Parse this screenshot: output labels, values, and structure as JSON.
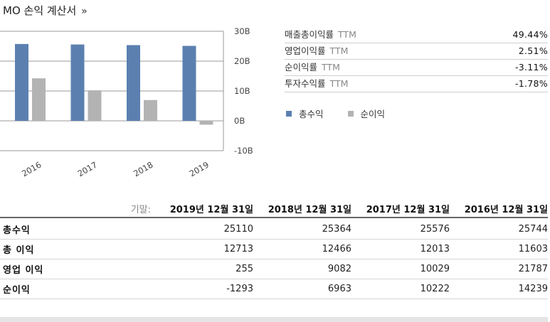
{
  "title": "MO 손익 계산서",
  "title_more": "»",
  "chart_data": {
    "type": "bar",
    "categories": [
      "2016",
      "2017",
      "2018",
      "2019"
    ],
    "series": [
      {
        "name": "총수익",
        "color": "#5b80b0",
        "values": [
          25.744,
          25.576,
          25.364,
          25.11
        ]
      },
      {
        "name": "순이익",
        "color": "#b3b3b3",
        "values": [
          14.239,
          10.222,
          6.963,
          -1.293
        ]
      }
    ],
    "ylim": [
      -10,
      30
    ],
    "yticks": [
      "30B",
      "20B",
      "10B",
      "0B",
      "-10B"
    ],
    "grid": "horizontal",
    "legend": "below metrics"
  },
  "metrics": [
    {
      "label": "매출총이익률",
      "ttm": "TTM",
      "value": "49.44%"
    },
    {
      "label": "영업이익률",
      "ttm": "TTM",
      "value": "2.51%"
    },
    {
      "label": "순이익률",
      "ttm": "TTM",
      "value": "-3.11%"
    },
    {
      "label": "투자수익률",
      "ttm": "TTM",
      "value": "-1.78%"
    }
  ],
  "legend": {
    "revenue": "총수익",
    "net_income": "순이익"
  },
  "table": {
    "period_label": "기말:",
    "periods": [
      "2019년 12월 31일",
      "2018년 12월 31일",
      "2017년 12월 31일",
      "2016년 12월 31일"
    ],
    "rows": [
      {
        "label": "총수익",
        "values": [
          "25110",
          "25364",
          "25576",
          "25744"
        ]
      },
      {
        "label": "총 이익",
        "values": [
          "12713",
          "12466",
          "12013",
          "11603"
        ]
      },
      {
        "label": "영업 이익",
        "values": [
          "255",
          "9082",
          "10029",
          "21787"
        ]
      },
      {
        "label": "순이익",
        "values": [
          "-1293",
          "6963",
          "10222",
          "14239"
        ]
      }
    ]
  }
}
